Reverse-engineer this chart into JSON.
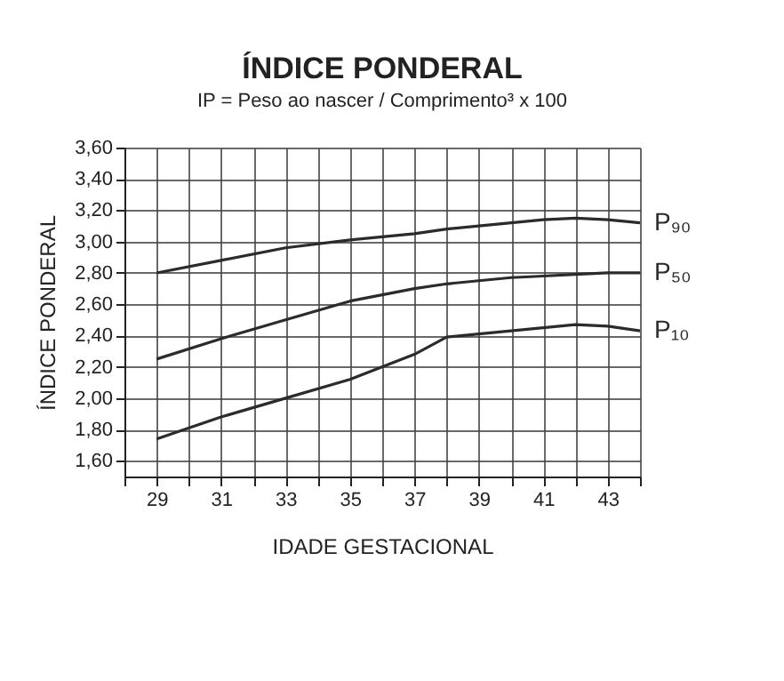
{
  "chart_data": {
    "type": "line",
    "title": "ÍNDICE PONDERAL",
    "subtitle": "IP = Peso ao nascer / Comprimento³ x 100",
    "xlabel": "IDADE GESTACIONAL",
    "ylabel": "ÍNDICE PONDERAL",
    "x": [
      29,
      31,
      33,
      35,
      37,
      38,
      39,
      40,
      41,
      42,
      43,
      44
    ],
    "series": [
      {
        "name": "P₉₀",
        "color": "#2b2b2b",
        "values": [
          2.8,
          2.88,
          2.96,
          3.01,
          3.05,
          3.08,
          3.1,
          3.12,
          3.14,
          3.15,
          3.14,
          3.12
        ]
      },
      {
        "name": "P₅₀",
        "color": "#2b2b2b",
        "values": [
          2.25,
          2.38,
          2.5,
          2.62,
          2.7,
          2.73,
          2.75,
          2.77,
          2.78,
          2.79,
          2.8,
          2.8
        ]
      },
      {
        "name": "P₁₀",
        "color": "#2b2b2b",
        "values": [
          1.74,
          1.88,
          2.0,
          2.12,
          2.28,
          2.39,
          2.41,
          2.43,
          2.45,
          2.47,
          2.46,
          2.43
        ]
      }
    ],
    "xlim": [
      28,
      44
    ],
    "xticks": [
      {
        "value": 28,
        "label": null
      },
      29,
      {
        "value": 30,
        "label": null
      },
      31,
      {
        "value": 32,
        "label": null
      },
      33,
      {
        "value": 34,
        "label": null
      },
      35,
      {
        "value": 36,
        "label": null
      },
      37,
      {
        "value": 38,
        "label": null
      },
      39,
      {
        "value": 40,
        "label": null
      },
      41,
      {
        "value": 42,
        "label": null
      },
      43,
      {
        "value": 44,
        "label": null
      }
    ],
    "ylim": [
      1.5,
      3.6
    ],
    "yticks": [
      {
        "value": 1.6,
        "label": "1,60"
      },
      {
        "value": 1.8,
        "label": "1,80"
      },
      {
        "value": 2.0,
        "label": "2,00"
      },
      {
        "value": 2.2,
        "label": "2,20"
      },
      {
        "value": 2.4,
        "label": "2,40"
      },
      {
        "value": 2.6,
        "label": "2,60"
      },
      {
        "value": 2.8,
        "label": "2,80"
      },
      {
        "value": 3.0,
        "label": "3,00"
      },
      {
        "value": 3.2,
        "label": "3,20"
      },
      {
        "value": 3.4,
        "label": "3,40"
      },
      {
        "value": 3.6,
        "label": "3,60"
      }
    ],
    "grid": true,
    "legend": false,
    "marker": "none",
    "line_style": "solid"
  }
}
